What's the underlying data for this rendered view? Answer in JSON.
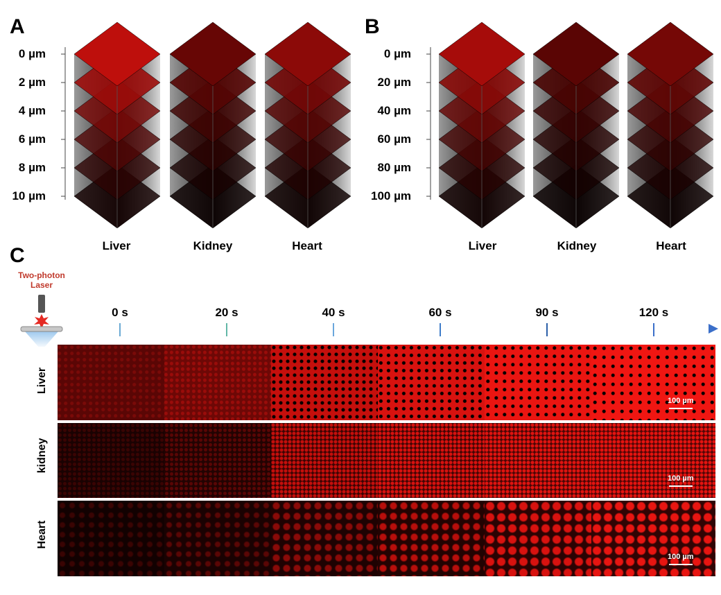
{
  "panels": {
    "a": "A",
    "b": "B",
    "c": "C"
  },
  "panel_a": {
    "depths": [
      "0 µm",
      "2 µm",
      "4 µm",
      "6 µm",
      "8 µm",
      "10 µm"
    ],
    "organs": [
      "Liver",
      "Kidney",
      "Heart"
    ]
  },
  "panel_b": {
    "depths": [
      "0 µm",
      "20 µm",
      "40 µm",
      "60 µm",
      "80 µm",
      "100 µm"
    ],
    "organs": [
      "Liver",
      "Kidney",
      "Heart"
    ]
  },
  "panel_c": {
    "laser_label_line1": "Two-photon",
    "laser_label_line2": "Laser",
    "times": [
      "0 s",
      "20 s",
      "40 s",
      "60 s",
      "90 s",
      "120 s"
    ],
    "rows": [
      "Liver",
      "kidney",
      "Heart"
    ],
    "scale_bar": "100 µm"
  },
  "colors": {
    "signal": "#e0120f",
    "background": "#000000",
    "axis_start": "#5ccf8a",
    "axis_end": "#3b6fc9",
    "laser": "#c0392b"
  }
}
